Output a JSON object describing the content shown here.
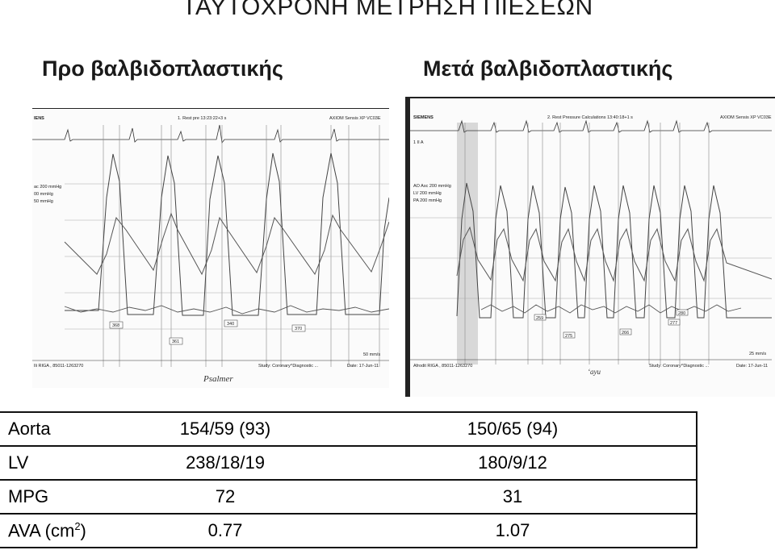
{
  "title": "ΤΑΥΤΟΧΡΟΝΗ ΜΕΤΡΗΣΗ ΠΙΕΣΕΩΝ",
  "pre_label": "Προ βαλβιδοπλαστικής",
  "post_label": "Μετά βαλβιδοπλαστικής",
  "pre_trace": {
    "brand": "IENS",
    "header": "1. Rest pre 13:23:22+3 s",
    "system": "AXIOM Sensis XP VC03E",
    "scales": [
      "ac 200 mmHg",
      "00 mmHg",
      "50 mmHg"
    ],
    "markers": [
      "368",
      "361",
      "340",
      "370"
    ],
    "speed": "50 mm/s",
    "footer_left": "Ili RIGA , 85011-1263270",
    "footer_study": "Study: Coronary^Diagnostic ...",
    "footer_date": "Date: 17-Jun-11",
    "signature": "Psalmer"
  },
  "post_trace": {
    "brand": "SIEMENS",
    "header": "2. Rest Pressure Calculations 13:40:18+1 s",
    "system": "AXIOM Sensis XP VC03E",
    "lead": "1 II  A",
    "scales": [
      "AO Asc 200 mmHg",
      "LV 200 mmHg",
      "PA 200 mmHg"
    ],
    "markers": [
      "259",
      "275",
      "266",
      "277",
      "280"
    ],
    "speed": "25 mm/s",
    "footer_left": "Afrodit RIGA , 85011-1263270",
    "footer_study": "Study: Coronary^Diagnostic ...",
    "footer_date": "Date: 17-Jun-11",
    "signature": "‘ayu"
  },
  "table": [
    {
      "label": "Aorta",
      "pre": "154/59 (93)",
      "post": "150/65 (94)"
    },
    {
      "label": "LV",
      "pre": "238/18/19",
      "post": "180/9/12"
    },
    {
      "label": "MPG",
      "pre": "72",
      "post": "31"
    },
    {
      "label_main": "AVA (cm",
      "label_sup": "2",
      "label_end": ")",
      "pre": "0.77",
      "post": "1.07"
    }
  ]
}
